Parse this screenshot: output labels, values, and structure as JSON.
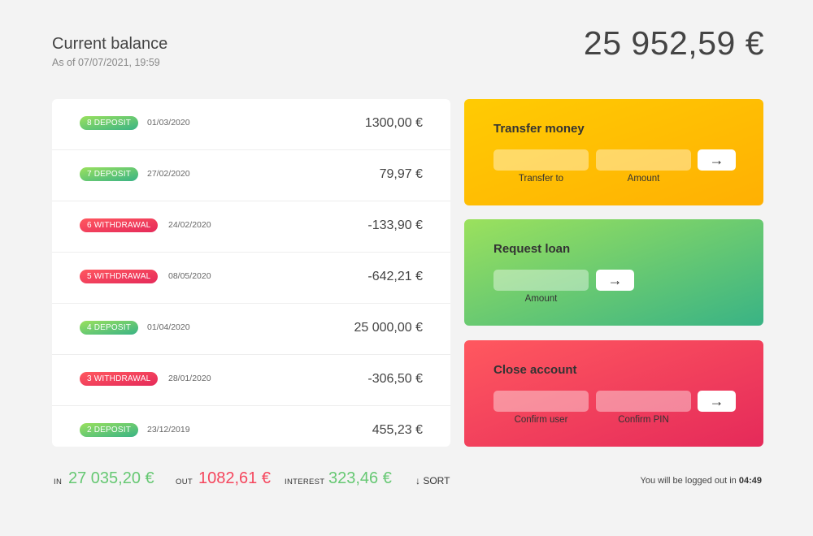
{
  "header": {
    "title": "Current balance",
    "as_of": "As of 07/07/2021, 19:59",
    "balance": "25 952,59 €"
  },
  "movements": [
    {
      "type": "deposit",
      "label": "8 DEPOSIT",
      "date": "01/03/2020",
      "amount": "1300,00 €"
    },
    {
      "type": "deposit",
      "label": "7 DEPOSIT",
      "date": "27/02/2020",
      "amount": "79,97 €"
    },
    {
      "type": "withdrawal",
      "label": "6 WITHDRAWAL",
      "date": "24/02/2020",
      "amount": "-133,90 €"
    },
    {
      "type": "withdrawal",
      "label": "5 WITHDRAWAL",
      "date": "08/05/2020",
      "amount": "-642,21 €"
    },
    {
      "type": "deposit",
      "label": "4 DEPOSIT",
      "date": "01/04/2020",
      "amount": "25 000,00 €"
    },
    {
      "type": "withdrawal",
      "label": "3 WITHDRAWAL",
      "date": "28/01/2020",
      "amount": "-306,50 €"
    },
    {
      "type": "deposit",
      "label": "2 DEPOSIT",
      "date": "23/12/2019",
      "amount": "455,23 €"
    }
  ],
  "operations": {
    "transfer": {
      "title": "Transfer money",
      "to_label": "Transfer to",
      "amount_label": "Amount",
      "button": "→"
    },
    "loan": {
      "title": "Request loan",
      "amount_label": "Amount",
      "button": "→"
    },
    "close": {
      "title": "Close account",
      "user_label": "Confirm user",
      "pin_label": "Confirm PIN",
      "button": "→"
    }
  },
  "summary": {
    "in_label": "In",
    "in_value": "27 035,20 €",
    "out_label": "Out",
    "out_value": "1082,61 €",
    "interest_label": "Interest",
    "interest_value": "323,46 €",
    "sort_label": "↓ SORT"
  },
  "logout": {
    "text": "You will be logged out in",
    "timer": "04:49"
  },
  "colors": {
    "deposit": "#66c873",
    "withdrawal": "#f5465d",
    "transfer_card": "#ffc003",
    "loan_card": "#6cc86f",
    "close_card": "#f23f5d"
  }
}
